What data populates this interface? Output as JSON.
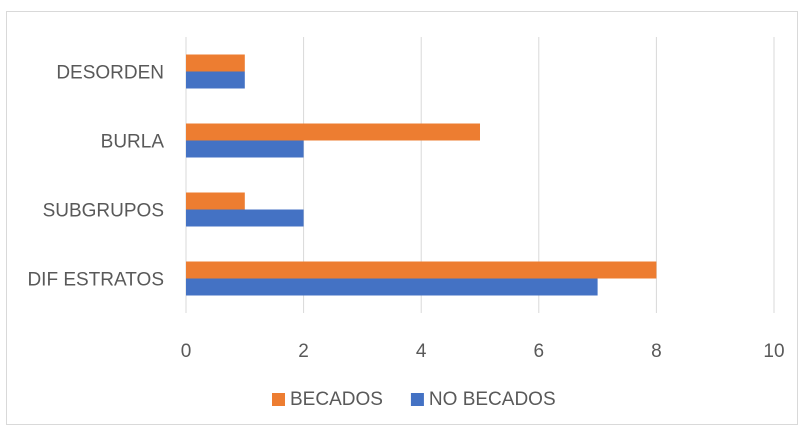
{
  "chart_data": {
    "type": "bar",
    "orientation": "horizontal",
    "categories": [
      "DESORDEN",
      "BURLA",
      "SUBGRUPOS",
      "DIF ESTRATOS"
    ],
    "series": [
      {
        "name": "BECADOS",
        "values": [
          1,
          5,
          1,
          8
        ],
        "color": "#ED7D31"
      },
      {
        "name": "NO BECADOS",
        "values": [
          1,
          2,
          2,
          7
        ],
        "color": "#4472C4"
      }
    ],
    "xlim": [
      0,
      10
    ],
    "xticks": [
      0,
      2,
      4,
      6,
      8,
      10
    ],
    "grid": true,
    "legend_position": "bottom",
    "gridline_color": "#d9d9d9"
  }
}
